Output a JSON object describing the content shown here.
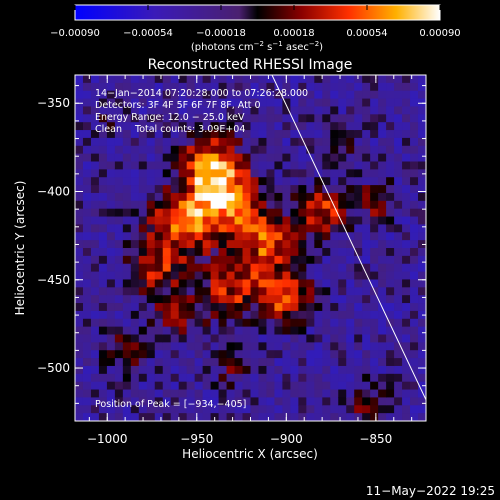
{
  "chart_data": {
    "type": "heatmap",
    "title": "Reconstructed RHESSI Image",
    "xlabel": "Heliocentric X (arcsec)",
    "ylabel": "Heliocentric Y (arcsec)",
    "xlim": [
      -1018,
      -822
    ],
    "ylim": [
      -530,
      -334
    ],
    "x_ticks": [
      -1000,
      -950,
      -900,
      -850
    ],
    "x_tick_labels": [
      "−1000",
      "−950",
      "−900",
      "−850"
    ],
    "y_ticks": [
      -350,
      -400,
      -450,
      -500
    ],
    "y_tick_labels": [
      "−350",
      "−400",
      "−450",
      "−500"
    ],
    "colorbar": {
      "range": [
        -0.0009,
        0.0009
      ],
      "ticks": [
        -0.0009,
        -0.00054,
        -0.00018,
        0.00018,
        0.00054,
        0.0009
      ],
      "tick_labels": [
        "−0.00090",
        "−0.00054",
        "−0.00018",
        "0.00018",
        "0.00054",
        "0.00090"
      ],
      "unit_text": "(photons cm",
      "unit_exp1": "−2",
      "unit_mid": " s",
      "unit_exp2": "−1",
      "unit_mid2": " asec",
      "unit_exp3": "−2",
      "unit_end": ")"
    },
    "annotations": {
      "time_range": "14−Jan−2014 07:20:28.000 to 07:26:28.000",
      "detectors": "Detectors: 3F 4F 5F 6F 7F 8F, Att 0",
      "energy": "Energy Range: 12.0 − 25.0 keV",
      "clean": "Clean",
      "counts": "Total counts: 3.09E+04",
      "peak": "Position of Peak = [−934,−405]"
    },
    "peak": [
      -934,
      -405
    ],
    "limb_line": [
      [
        -908,
        -334
      ],
      [
        -822,
        -518
      ]
    ],
    "grid": false
  },
  "footer": {
    "date": "11−May−2022 19:25"
  }
}
